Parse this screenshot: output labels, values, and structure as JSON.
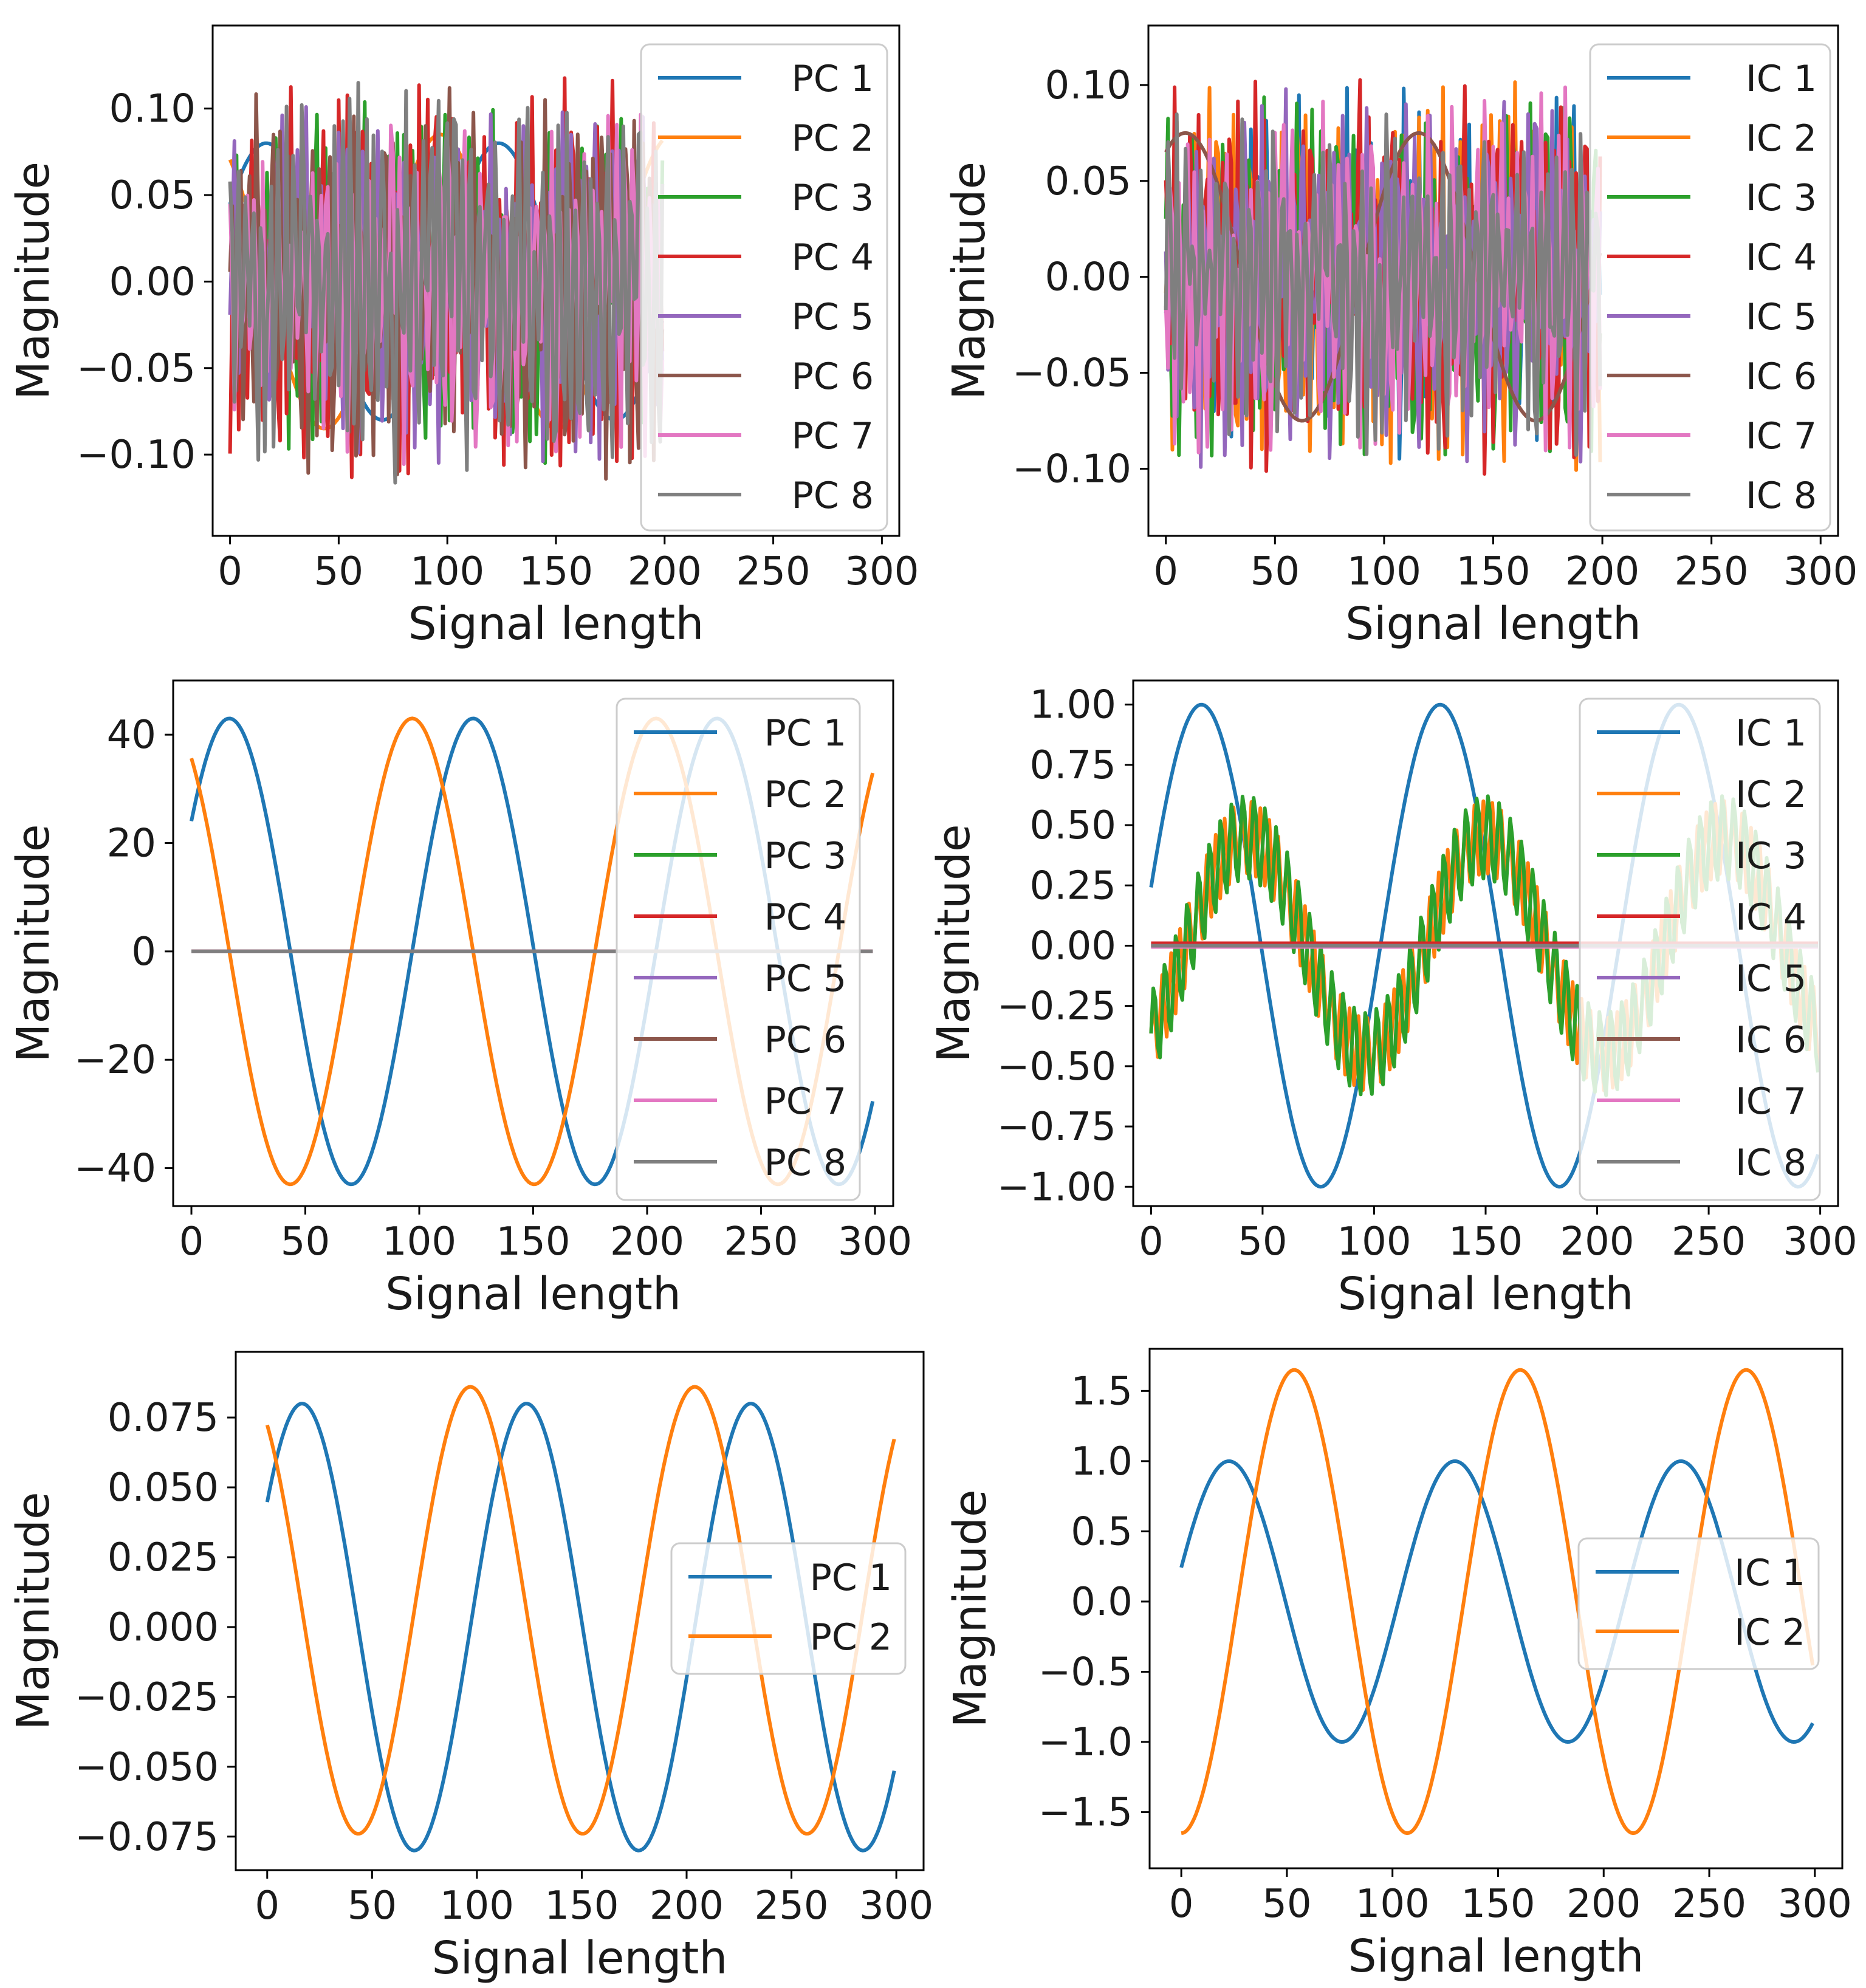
{
  "figure": {
    "description_free": true
  },
  "colors": {
    "series": [
      "#1f77b4",
      "#ff7f0e",
      "#2ca02c",
      "#d62728",
      "#9467bd",
      "#8c564b",
      "#e377c2",
      "#7f7f7f"
    ],
    "axis": "#000000",
    "background": "#ffffff"
  },
  "chart_data": [
    {
      "type": "line",
      "title": "",
      "xlabel": "Signal length",
      "ylabel": "Magnitude",
      "xlim": [
        -8,
        308
      ],
      "ylim": [
        -0.147,
        0.148
      ],
      "xticks": [
        0,
        50,
        100,
        150,
        200,
        250,
        300
      ],
      "xtick_labels": [
        "0",
        "50",
        "100",
        "150",
        "200",
        "250",
        "300"
      ],
      "yticks": [
        -0.1,
        -0.05,
        0,
        0.05,
        0.1
      ],
      "ytick_labels": [
        "−0.10",
        "−0.05",
        "0.00",
        "0.05",
        "0.10"
      ],
      "legend": {
        "location": "right",
        "entries": [
          "PC 1",
          "PC 2",
          "PC 3",
          "PC 4",
          "PC 5",
          "PC 6",
          "PC 7",
          "PC 8"
        ]
      },
      "n_points": 200,
      "series": [
        {
          "name": "PC 1",
          "kind": "sine",
          "amplitude": 0.08,
          "period": 107,
          "phase_deg": 34
        },
        {
          "name": "PC 2",
          "kind": "sine",
          "amplitude": 0.085,
          "period": 107,
          "phase_deg": 124
        },
        {
          "name": "PC 3",
          "kind": "noise",
          "amplitude": 0.08,
          "seed": 3
        },
        {
          "name": "PC 4",
          "kind": "noise",
          "amplitude": 0.09,
          "seed": 4
        },
        {
          "name": "PC 5",
          "kind": "noise",
          "amplitude": 0.08,
          "seed": 5
        },
        {
          "name": "PC 6",
          "kind": "noise",
          "amplitude": 0.085,
          "seed": 6
        },
        {
          "name": "PC 7",
          "kind": "noise",
          "amplitude": 0.08,
          "seed": 7
        },
        {
          "name": "PC 8",
          "kind": "noise",
          "amplitude": 0.095,
          "seed": 8
        }
      ]
    },
    {
      "type": "line",
      "title": "",
      "xlabel": "Signal length",
      "ylabel": "Magnitude",
      "xlim": [
        -8,
        308
      ],
      "ylim": [
        -0.135,
        0.131
      ],
      "xticks": [
        0,
        50,
        100,
        150,
        200,
        250,
        300
      ],
      "xtick_labels": [
        "0",
        "50",
        "100",
        "150",
        "200",
        "250",
        "300"
      ],
      "yticks": [
        -0.1,
        -0.05,
        0,
        0.05,
        0.1
      ],
      "ytick_labels": [
        "−0.10",
        "−0.05",
        "0.00",
        "0.05",
        "0.10"
      ],
      "legend": {
        "location": "right",
        "entries": [
          "IC 1",
          "IC 2",
          "IC 3",
          "IC 4",
          "IC 5",
          "IC 6",
          "IC 7",
          "IC 8"
        ]
      },
      "n_points": 200,
      "series": [
        {
          "name": "IC 1",
          "kind": "noise",
          "amplitude": 0.075,
          "seed": 11
        },
        {
          "name": "IC 2",
          "kind": "noise",
          "amplitude": 0.08,
          "seed": 12
        },
        {
          "name": "IC 3",
          "kind": "noise",
          "amplitude": 0.075,
          "seed": 13
        },
        {
          "name": "IC 4",
          "kind": "noise",
          "amplitude": 0.08,
          "seed": 14
        },
        {
          "name": "IC 5",
          "kind": "noise",
          "amplitude": 0.075,
          "seed": 15
        },
        {
          "name": "IC 6",
          "kind": "sine",
          "amplitude": 0.075,
          "period": 107,
          "phase_deg": 60
        },
        {
          "name": "IC 7",
          "kind": "noise",
          "amplitude": 0.075,
          "seed": 17
        },
        {
          "name": "IC 8",
          "kind": "noise",
          "amplitude": 0.07,
          "seed": 18
        }
      ]
    },
    {
      "type": "line",
      "title": "",
      "xlabel": "Signal length",
      "ylabel": "Magnitude",
      "xlim": [
        -8,
        308
      ],
      "ylim": [
        -47,
        50
      ],
      "xticks": [
        0,
        50,
        100,
        150,
        200,
        250,
        300
      ],
      "xtick_labels": [
        "0",
        "50",
        "100",
        "150",
        "200",
        "250",
        "300"
      ],
      "yticks": [
        -40,
        -20,
        0,
        20,
        40
      ],
      "ytick_labels": [
        "−40",
        "−20",
        "0",
        "20",
        "40"
      ],
      "legend": {
        "location": "right",
        "entries": [
          "PC 1",
          "PC 2",
          "PC 3",
          "PC 4",
          "PC 5",
          "PC 6",
          "PC 7",
          "PC 8"
        ]
      },
      "n_points": 300,
      "series": [
        {
          "name": "PC 1",
          "kind": "sine",
          "amplitude": 43,
          "period": 107,
          "phase_deg": 34
        },
        {
          "name": "PC 2",
          "kind": "sine",
          "amplitude": 43,
          "period": 107,
          "phase_deg": 124
        },
        {
          "name": "PC 3",
          "kind": "flat",
          "value": 0
        },
        {
          "name": "PC 4",
          "kind": "flat",
          "value": 0
        },
        {
          "name": "PC 5",
          "kind": "flat",
          "value": 0
        },
        {
          "name": "PC 6",
          "kind": "flat",
          "value": 0
        },
        {
          "name": "PC 7",
          "kind": "flat",
          "value": 0
        },
        {
          "name": "PC 8",
          "kind": "flat",
          "value": 0
        }
      ]
    },
    {
      "type": "line",
      "title": "",
      "xlabel": "Signal length",
      "ylabel": "Magnitude",
      "xlim": [
        -8,
        308
      ],
      "ylim": [
        -1.08,
        1.1
      ],
      "xticks": [
        0,
        50,
        100,
        150,
        200,
        250,
        300
      ],
      "xtick_labels": [
        "0",
        "50",
        "100",
        "150",
        "200",
        "250",
        "300"
      ],
      "yticks": [
        -1,
        -0.75,
        -0.5,
        -0.25,
        0,
        0.25,
        0.5,
        0.75,
        1
      ],
      "ytick_labels": [
        "−1.00",
        "−0.75",
        "−0.50",
        "−0.25",
        "0.00",
        "0.25",
        "0.50",
        "0.75",
        "1.00"
      ],
      "legend": {
        "location": "right",
        "entries": [
          "IC 1",
          "IC 2",
          "IC 3",
          "IC 4",
          "IC 5",
          "IC 6",
          "IC 7",
          "IC 8"
        ]
      },
      "n_points": 300,
      "series": [
        {
          "name": "IC 1",
          "kind": "sine",
          "amplitude": 1.0,
          "period": 107,
          "phase_deg": 14
        },
        {
          "name": "IC 2",
          "kind": "modsine",
          "amplitude": 0.45,
          "period": 107,
          "phase_deg": -54,
          "ripple": 0.15,
          "ripple_period": 4
        },
        {
          "name": "IC 3",
          "kind": "modsine",
          "amplitude": 0.45,
          "period": 107,
          "phase_deg": -54,
          "ripple": 0.18,
          "ripple_period": 5
        },
        {
          "name": "IC 4",
          "kind": "flat",
          "value": 0.01
        },
        {
          "name": "IC 5",
          "kind": "flat",
          "value": 0
        },
        {
          "name": "IC 6",
          "kind": "flat",
          "value": 0
        },
        {
          "name": "IC 7",
          "kind": "flat",
          "value": -0.005
        },
        {
          "name": "IC 8",
          "kind": "flat",
          "value": 0
        }
      ]
    },
    {
      "type": "line",
      "title": "",
      "xlabel": "Signal length",
      "ylabel": "Magnitude",
      "xlim": [
        -15,
        313
      ],
      "ylim": [
        -0.087,
        0.0985
      ],
      "xticks": [
        0,
        50,
        100,
        150,
        200,
        250,
        300
      ],
      "xtick_labels": [
        "0",
        "50",
        "100",
        "150",
        "200",
        "250",
        "300"
      ],
      "yticks": [
        -0.075,
        -0.05,
        -0.025,
        0,
        0.025,
        0.05,
        0.075
      ],
      "ytick_labels": [
        "−0.075",
        "−0.050",
        "−0.025",
        "0.000",
        "0.025",
        "0.050",
        "0.075"
      ],
      "legend": {
        "location": "center right",
        "entries": [
          "PC 1",
          "PC 2"
        ]
      },
      "n_points": 300,
      "series": [
        {
          "name": "PC 1",
          "kind": "sine",
          "amplitude": 0.08,
          "period": 107,
          "phase_deg": 34
        },
        {
          "name": "PC 2",
          "kind": "sine",
          "amplitude": 0.08,
          "period": 107,
          "phase_deg": 124,
          "offset": 0.006
        }
      ]
    },
    {
      "type": "line",
      "title": "",
      "xlabel": "Signal length",
      "ylabel": "Magnitude",
      "xlim": [
        -15,
        313
      ],
      "ylim": [
        -1.9,
        1.8
      ],
      "xticks": [
        0,
        50,
        100,
        150,
        200,
        250,
        300
      ],
      "xtick_labels": [
        "0",
        "50",
        "100",
        "150",
        "200",
        "250",
        "300"
      ],
      "yticks": [
        -1.5,
        -1,
        -0.5,
        0,
        0.5,
        1,
        1.5
      ],
      "ytick_labels": [
        "−1.5",
        "−1.0",
        "−0.5",
        "0.0",
        "0.5",
        "1.0",
        "1.5"
      ],
      "legend": {
        "location": "center right",
        "entries": [
          "IC 1",
          "IC 2"
        ]
      },
      "n_points": 300,
      "series": [
        {
          "name": "IC 1",
          "kind": "sine",
          "amplitude": 1.0,
          "period": 107,
          "phase_deg": 14
        },
        {
          "name": "IC 2",
          "kind": "sine",
          "amplitude": 1.65,
          "period": 107,
          "phase_deg": -90
        }
      ]
    }
  ]
}
